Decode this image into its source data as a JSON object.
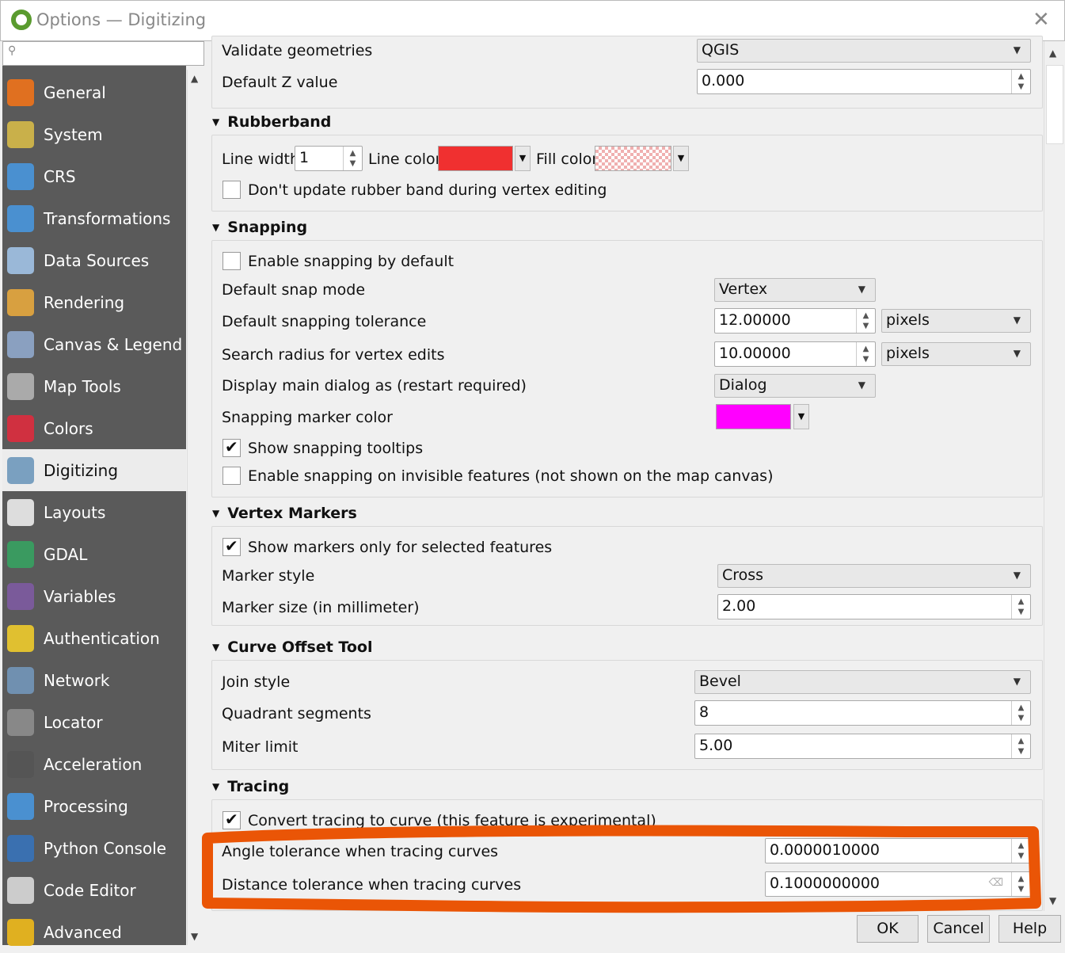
{
  "window": {
    "title": "Options — Digitizing",
    "close_icon": "close-icon"
  },
  "search": {
    "placeholder": ""
  },
  "sidebar": {
    "items": [
      {
        "label": "General",
        "icon": "hammer-screwdriver-icon",
        "color": "#e07020"
      },
      {
        "label": "System",
        "icon": "wrench-gear-icon",
        "color": "#c9b04a"
      },
      {
        "label": "CRS",
        "icon": "globe-grid-icon",
        "color": "#4a90d0"
      },
      {
        "label": "Transformations",
        "icon": "globe-transform-icon",
        "color": "#4a90d0"
      },
      {
        "label": "Data Sources",
        "icon": "table-icon",
        "color": "#9ab8d8"
      },
      {
        "label": "Rendering",
        "icon": "brush-icon",
        "color": "#d8a040"
      },
      {
        "label": "Canvas & Legend",
        "icon": "map-canvas-icon",
        "color": "#8aa0c0"
      },
      {
        "label": "Map Tools",
        "icon": "map-cursor-icon",
        "color": "#aaaaaa"
      },
      {
        "label": "Colors",
        "icon": "color-palette-icon",
        "color": "#d03040"
      },
      {
        "label": "Digitizing",
        "icon": "digitizing-icon",
        "color": "#7aa0c0",
        "selected": true
      },
      {
        "label": "Layouts",
        "icon": "layout-page-icon",
        "color": "#dddddd"
      },
      {
        "label": "GDAL",
        "icon": "gdal-globe-icon",
        "color": "#3a9a60"
      },
      {
        "label": "Variables",
        "icon": "epsilon-icon",
        "color": "#7a5a9a"
      },
      {
        "label": "Authentication",
        "icon": "padlock-icon",
        "color": "#e0c030"
      },
      {
        "label": "Network",
        "icon": "network-computers-icon",
        "color": "#7090b0"
      },
      {
        "label": "Locator",
        "icon": "magnifier-icon",
        "color": "#888888"
      },
      {
        "label": "Acceleration",
        "icon": "chip-icon",
        "color": "#555555"
      },
      {
        "label": "Processing",
        "icon": "gear-icon",
        "color": "#4a90d0"
      },
      {
        "label": "Python Console",
        "icon": "python-icon",
        "color": "#3a70b0"
      },
      {
        "label": "Code Editor",
        "icon": "code-file-icon",
        "color": "#cccccc"
      },
      {
        "label": "Advanced",
        "icon": "warning-icon",
        "color": "#e0b020"
      }
    ]
  },
  "top": {
    "validate_label": "Validate geometries",
    "validate_value": "QGIS",
    "z_label": "Default Z value",
    "z_value": "0.000"
  },
  "rubberband": {
    "title": "Rubberband",
    "line_width_label": "Line width",
    "line_width": "1",
    "line_color_label": "Line color",
    "line_color": "#f03030",
    "fill_color_label": "Fill color",
    "fill_color": "#f0b0b0",
    "dont_update_label": "Don't update rubber band during vertex editing",
    "dont_update": false
  },
  "snapping": {
    "title": "Snapping",
    "enable_label": "Enable snapping by default",
    "enable": false,
    "mode_label": "Default snap mode",
    "mode": "Vertex",
    "tol_label": "Default snapping tolerance",
    "tol": "12.00000",
    "tol_unit": "pixels",
    "radius_label": "Search radius for vertex edits",
    "radius": "10.00000",
    "radius_unit": "pixels",
    "dialog_label": "Display main dialog as (restart required)",
    "dialog": "Dialog",
    "marker_color_label": "Snapping marker color",
    "marker_color": "#ff00ff",
    "tooltips_label": "Show snapping tooltips",
    "tooltips": true,
    "invisible_label": "Enable snapping on invisible features (not shown on the map canvas)",
    "invisible": false
  },
  "vertex": {
    "title": "Vertex Markers",
    "selected_only_label": "Show markers only for selected features",
    "selected_only": true,
    "style_label": "Marker style",
    "style": "Cross",
    "size_label": "Marker size (in millimeter)",
    "size": "2.00"
  },
  "curve": {
    "title": "Curve Offset Tool",
    "join_label": "Join style",
    "join": "Bevel",
    "quad_label": "Quadrant segments",
    "quad": "8",
    "miter_label": "Miter limit",
    "miter": "5.00"
  },
  "tracing": {
    "title": "Tracing",
    "convert_label": "Convert tracing to curve (this feature is experimental)",
    "convert": true,
    "angle_label": "Angle tolerance when tracing curves",
    "angle": "0.0000010000",
    "dist_label": "Distance tolerance when tracing curves",
    "dist": "0.1000000000"
  },
  "annotation": {
    "color": "#ea5506"
  },
  "buttons": {
    "ok": "OK",
    "cancel": "Cancel",
    "help": "Help"
  }
}
